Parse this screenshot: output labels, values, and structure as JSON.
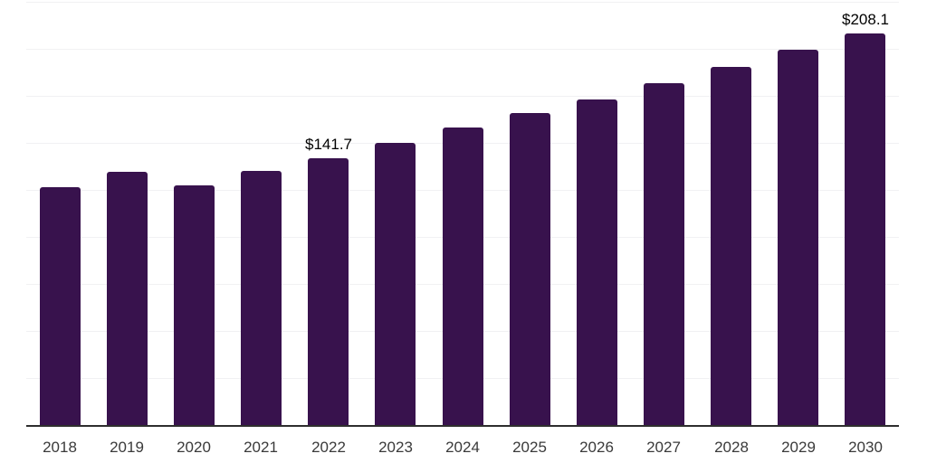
{
  "chart_data": {
    "type": "bar",
    "title": "",
    "xlabel": "",
    "ylabel": "",
    "categories": [
      "2018",
      "2019",
      "2020",
      "2021",
      "2022",
      "2023",
      "2024",
      "2025",
      "2026",
      "2027",
      "2028",
      "2029",
      "2030"
    ],
    "values": [
      126.5,
      134.8,
      127.5,
      135.1,
      141.7,
      149.9,
      158.0,
      166.0,
      173.2,
      181.7,
      190.4,
      199.7,
      208.1
    ],
    "data_labels": [
      "",
      "",
      "",
      "",
      "$141.7",
      "",
      "",
      "",
      "",
      "",
      "",
      "",
      "$208.1"
    ],
    "ylim": [
      0,
      225
    ],
    "gridline_values": [
      25,
      50,
      75,
      100,
      125,
      150,
      175,
      200,
      225
    ],
    "grid": "horizontal-only",
    "legend": "none",
    "colors": {
      "bar": "#38124D",
      "axis_line": "#2E2E2E",
      "gridline": "#F1F1F3",
      "data_label_text": "#000000",
      "tick_label_text": "#3A3A3A",
      "background": "#FFFFFF"
    }
  }
}
